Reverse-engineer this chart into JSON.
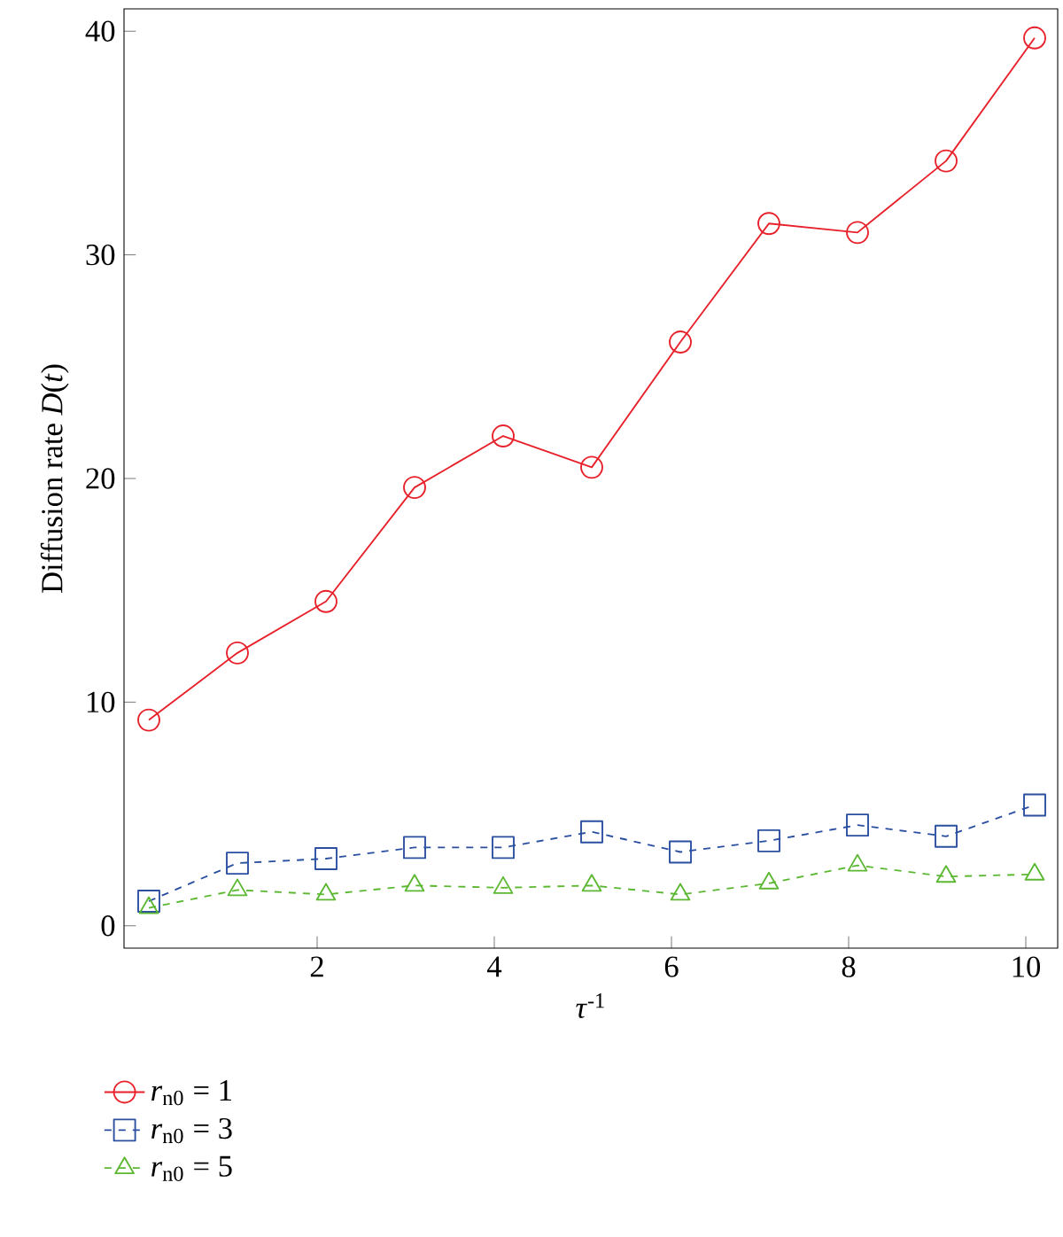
{
  "chart_data": {
    "type": "line",
    "xlabel": "*τ*$^{-1}$",
    "ylabel": "Diffusion rate *D*(*t*)",
    "x": [
      0.1,
      1.1,
      2.1,
      3.1,
      4.1,
      5.1,
      6.1,
      7.1,
      8.1,
      9.1,
      10.1
    ],
    "xlim": [
      -0.18,
      10.36
    ],
    "ylim": [
      -1,
      41
    ],
    "xticks": [
      2,
      4,
      6,
      8,
      10
    ],
    "yticks": [
      0,
      10,
      20,
      30,
      40
    ],
    "legend": "bottom left",
    "grid": false,
    "series": [
      {
        "name": "*r*$_{n0}$ = 1",
        "color": "#e8202a",
        "marker": "circle",
        "line_style": "solid",
        "values": [
          9.2,
          12.2,
          14.5,
          19.6,
          21.9,
          20.5,
          26.1,
          31.4,
          31.0,
          34.2,
          39.7
        ]
      },
      {
        "name": "*r*$_{n0}$ = 3",
        "color": "#2a4fa0",
        "marker": "square",
        "line_style": "dashed",
        "values": [
          1.1,
          2.8,
          3.0,
          3.5,
          3.5,
          4.2,
          3.3,
          3.8,
          4.5,
          4.0,
          5.4
        ]
      },
      {
        "name": "*r*$_{n0}$ = 5",
        "color": "#5cb832",
        "marker": "triangle",
        "line_style": "dashed",
        "values": [
          0.8,
          1.6,
          1.4,
          1.8,
          1.7,
          1.8,
          1.4,
          1.9,
          2.7,
          2.2,
          2.3
        ]
      }
    ]
  }
}
